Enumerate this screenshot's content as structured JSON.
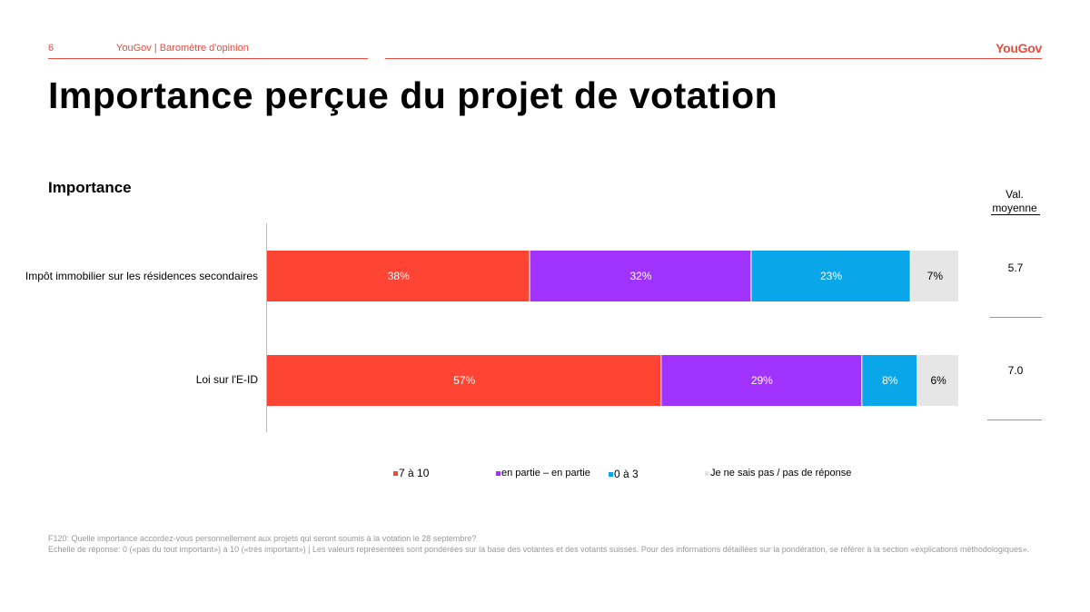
{
  "header": {
    "page_number": "6",
    "source": "YouGov | Baromètre d'opinion",
    "logo": "YouGov"
  },
  "title": "Importance perçue du projet de votation",
  "colors": {
    "accent": "#e84c3d",
    "high": "#ff4433",
    "medium": "#a033ff",
    "low": "#0aa6ea",
    "dk": "#e6e6e6"
  },
  "mean_header": "Val. moyenne",
  "chart_data": {
    "type": "bar",
    "orientation": "horizontal",
    "stacked": true,
    "title": "Importance",
    "categories": [
      "Impôt immobilier sur les résidences secondaires",
      "Loi sur l'E-ID"
    ],
    "series": [
      {
        "name": "7 à 10",
        "values": [
          38,
          57
        ],
        "labels": [
          "38%",
          "57%"
        ]
      },
      {
        "name": "en partie – en partie",
        "values": [
          32,
          29
        ],
        "labels": [
          "32%",
          "29%"
        ]
      },
      {
        "name": "0 à 3",
        "values": [
          23,
          8
        ],
        "labels": [
          "23%",
          "8%"
        ]
      },
      {
        "name": "Je ne sais pas / pas de réponse",
        "values": [
          7,
          6
        ],
        "labels": [
          "7%",
          "6%"
        ]
      }
    ],
    "mean_values": [
      "5.7",
      "7.0"
    ],
    "xlim": [
      0,
      100
    ],
    "legend_position": "bottom"
  },
  "footnote": {
    "line1": "F120: Quelle importance accordez-vous personnellement aux projets qui seront soumis  à la votation le 28 septembre?",
    "line2": "Echelle de réponse: 0 («pas du tout important») à 10 («très important») | Les valeurs représentées sont pondérées sur la base des votantes et des votants suisses. Pour des informations détaillées sur la pondération, se référer à la section «explications méthodologiques»."
  }
}
